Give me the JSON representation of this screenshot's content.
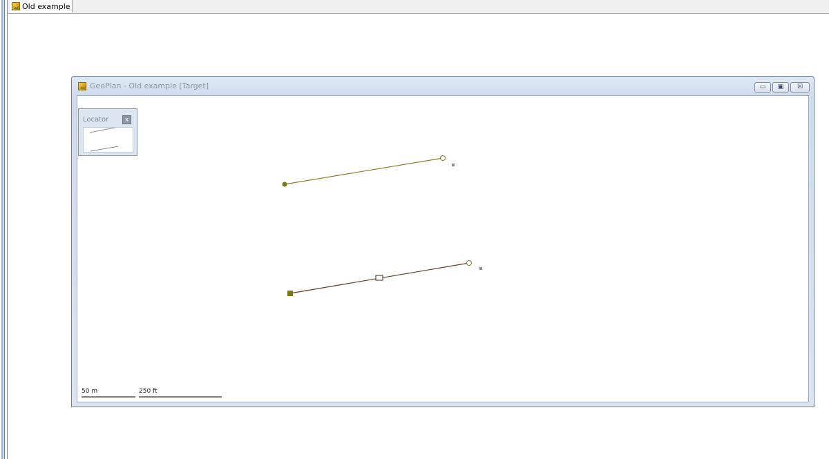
{
  "document_tab": {
    "title": "Old example",
    "icon": "geoplan-app-icon"
  },
  "window": {
    "title": "GeoPlan - Old example [Target]",
    "icon": "geoplan-app-icon",
    "buttons": {
      "minimize": "▭",
      "maximize": "▣",
      "close": "☒"
    }
  },
  "locator": {
    "title": "Locator",
    "close_label": "x"
  },
  "map": {
    "line_color_upper": "#8a7a28",
    "line_color_lower": "#5e3a1e",
    "node_color": "#7a7a10",
    "handle_color": "#8c8c8c",
    "scale_bars": [
      {
        "label": "50 m"
      },
      {
        "label": "250 ft"
      }
    ]
  }
}
